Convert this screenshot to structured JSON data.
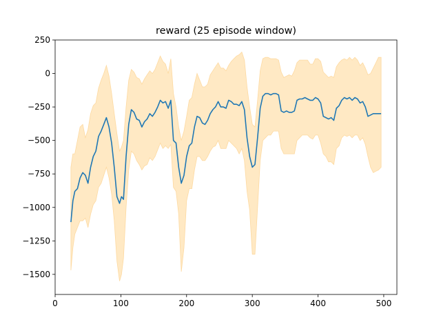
{
  "chart_data": {
    "type": "line",
    "title": "reward (25 episode window)",
    "xlabel": "",
    "ylabel": "",
    "xlim": [
      0,
      520
    ],
    "ylim": [
      -1650,
      250
    ],
    "xticks": [
      0,
      100,
      200,
      300,
      400,
      500
    ],
    "yticks": [
      250,
      0,
      -250,
      -500,
      -750,
      -1000,
      -1250,
      -1500
    ],
    "grid": false,
    "legend": "none",
    "colors": {
      "line": "#1f77b4",
      "band": "#ffe9c4",
      "band_edge": "#fdd9a0"
    },
    "series": [
      {
        "x": [
          24,
          27,
          30,
          34,
          38,
          42,
          46,
          50,
          54,
          58,
          62,
          66,
          70,
          74,
          78,
          82,
          86,
          90,
          94,
          98,
          101,
          104,
          108,
          112,
          116,
          120,
          124,
          128,
          132,
          136,
          140,
          144,
          148,
          152,
          156,
          160,
          164,
          168,
          172,
          176,
          180,
          184,
          188,
          192,
          196,
          200,
          204,
          208,
          212,
          216,
          220,
          224,
          228,
          232,
          236,
          240,
          244,
          248,
          252,
          256,
          260,
          264,
          268,
          272,
          276,
          280,
          284,
          288,
          292,
          296,
          300,
          304,
          308,
          312,
          316,
          320,
          324,
          328,
          332,
          336,
          340,
          344,
          348,
          352,
          356,
          360,
          364,
          368,
          372,
          376,
          380,
          384,
          388,
          392,
          396,
          400,
          404,
          408,
          412,
          416,
          420,
          424,
          428,
          432,
          436,
          440,
          444,
          448,
          452,
          456,
          460,
          464,
          468,
          472,
          476,
          480,
          484,
          488,
          492,
          496
        ],
        "values": [
          -1110,
          -950,
          -880,
          -860,
          -780,
          -740,
          -760,
          -820,
          -700,
          -620,
          -580,
          -470,
          -430,
          -380,
          -330,
          -400,
          -520,
          -700,
          -920,
          -970,
          -920,
          -940,
          -620,
          -380,
          -270,
          -290,
          -340,
          -350,
          -400,
          -360,
          -340,
          -300,
          -320,
          -290,
          -250,
          -200,
          -220,
          -210,
          -260,
          -200,
          -500,
          -520,
          -700,
          -820,
          -760,
          -620,
          -540,
          -520,
          -400,
          -320,
          -330,
          -370,
          -380,
          -350,
          -300,
          -270,
          -250,
          -210,
          -250,
          -250,
          -260,
          -200,
          -210,
          -230,
          -230,
          -240,
          -210,
          -270,
          -480,
          -620,
          -700,
          -680,
          -480,
          -260,
          -170,
          -150,
          -150,
          -160,
          -150,
          -150,
          -160,
          -280,
          -290,
          -280,
          -290,
          -290,
          -280,
          -200,
          -190,
          -190,
          -180,
          -190,
          -200,
          -200,
          -180,
          -190,
          -220,
          -320,
          -330,
          -340,
          -330,
          -350,
          -260,
          -240,
          -200,
          -180,
          -190,
          -180,
          -200,
          -180,
          -190,
          -220,
          -210,
          -250,
          -320,
          -310,
          -300,
          -300,
          -300,
          -300
        ],
        "upper": [
          -700,
          -600,
          -600,
          -500,
          -400,
          -380,
          -480,
          -420,
          -300,
          -240,
          -220,
          -110,
          -50,
          0,
          60,
          -20,
          -150,
          -300,
          -450,
          -580,
          -550,
          -500,
          -250,
          -50,
          30,
          10,
          -30,
          -40,
          -80,
          -40,
          -10,
          20,
          0,
          30,
          80,
          130,
          90,
          70,
          0,
          110,
          -150,
          -250,
          -400,
          -500,
          -430,
          -320,
          -200,
          -180,
          -80,
          0,
          -50,
          -100,
          -100,
          -80,
          -10,
          20,
          50,
          80,
          40,
          40,
          20,
          60,
          90,
          110,
          130,
          140,
          160,
          100,
          -100,
          -250,
          -380,
          -400,
          -200,
          20,
          110,
          120,
          120,
          110,
          110,
          110,
          100,
          10,
          -30,
          -20,
          -10,
          -20,
          20,
          80,
          100,
          100,
          100,
          100,
          70,
          70,
          110,
          110,
          90,
          10,
          -10,
          -30,
          -20,
          -30,
          50,
          80,
          100,
          110,
          100,
          120,
          100,
          120,
          100,
          60,
          80,
          40,
          -10,
          0,
          40,
          80,
          120,
          120
        ],
        "lower": [
          -1470,
          -1300,
          -1200,
          -1150,
          -1100,
          -1100,
          -1080,
          -1150,
          -1050,
          -980,
          -950,
          -850,
          -820,
          -760,
          -700,
          -780,
          -900,
          -1100,
          -1400,
          -1550,
          -1500,
          -1380,
          -1000,
          -720,
          -580,
          -600,
          -650,
          -680,
          -720,
          -690,
          -680,
          -630,
          -650,
          -620,
          -570,
          -520,
          -560,
          -540,
          -560,
          -530,
          -850,
          -880,
          -1050,
          -1480,
          -1300,
          -950,
          -860,
          -860,
          -720,
          -620,
          -620,
          -650,
          -650,
          -620,
          -580,
          -550,
          -540,
          -500,
          -560,
          -560,
          -560,
          -500,
          -520,
          -540,
          -560,
          -600,
          -560,
          -650,
          -880,
          -1020,
          -1350,
          -1350,
          -1000,
          -650,
          -500,
          -480,
          -460,
          -460,
          -430,
          -430,
          -430,
          -560,
          -600,
          -600,
          -600,
          -600,
          -600,
          -500,
          -480,
          -460,
          -460,
          -460,
          -480,
          -490,
          -460,
          -460,
          -520,
          -600,
          -620,
          -660,
          -660,
          -680,
          -560,
          -540,
          -480,
          -460,
          -470,
          -460,
          -480,
          -460,
          -460,
          -500,
          -480,
          -530,
          -620,
          -700,
          -740,
          -730,
          -720,
          -700
        ]
      }
    ]
  }
}
